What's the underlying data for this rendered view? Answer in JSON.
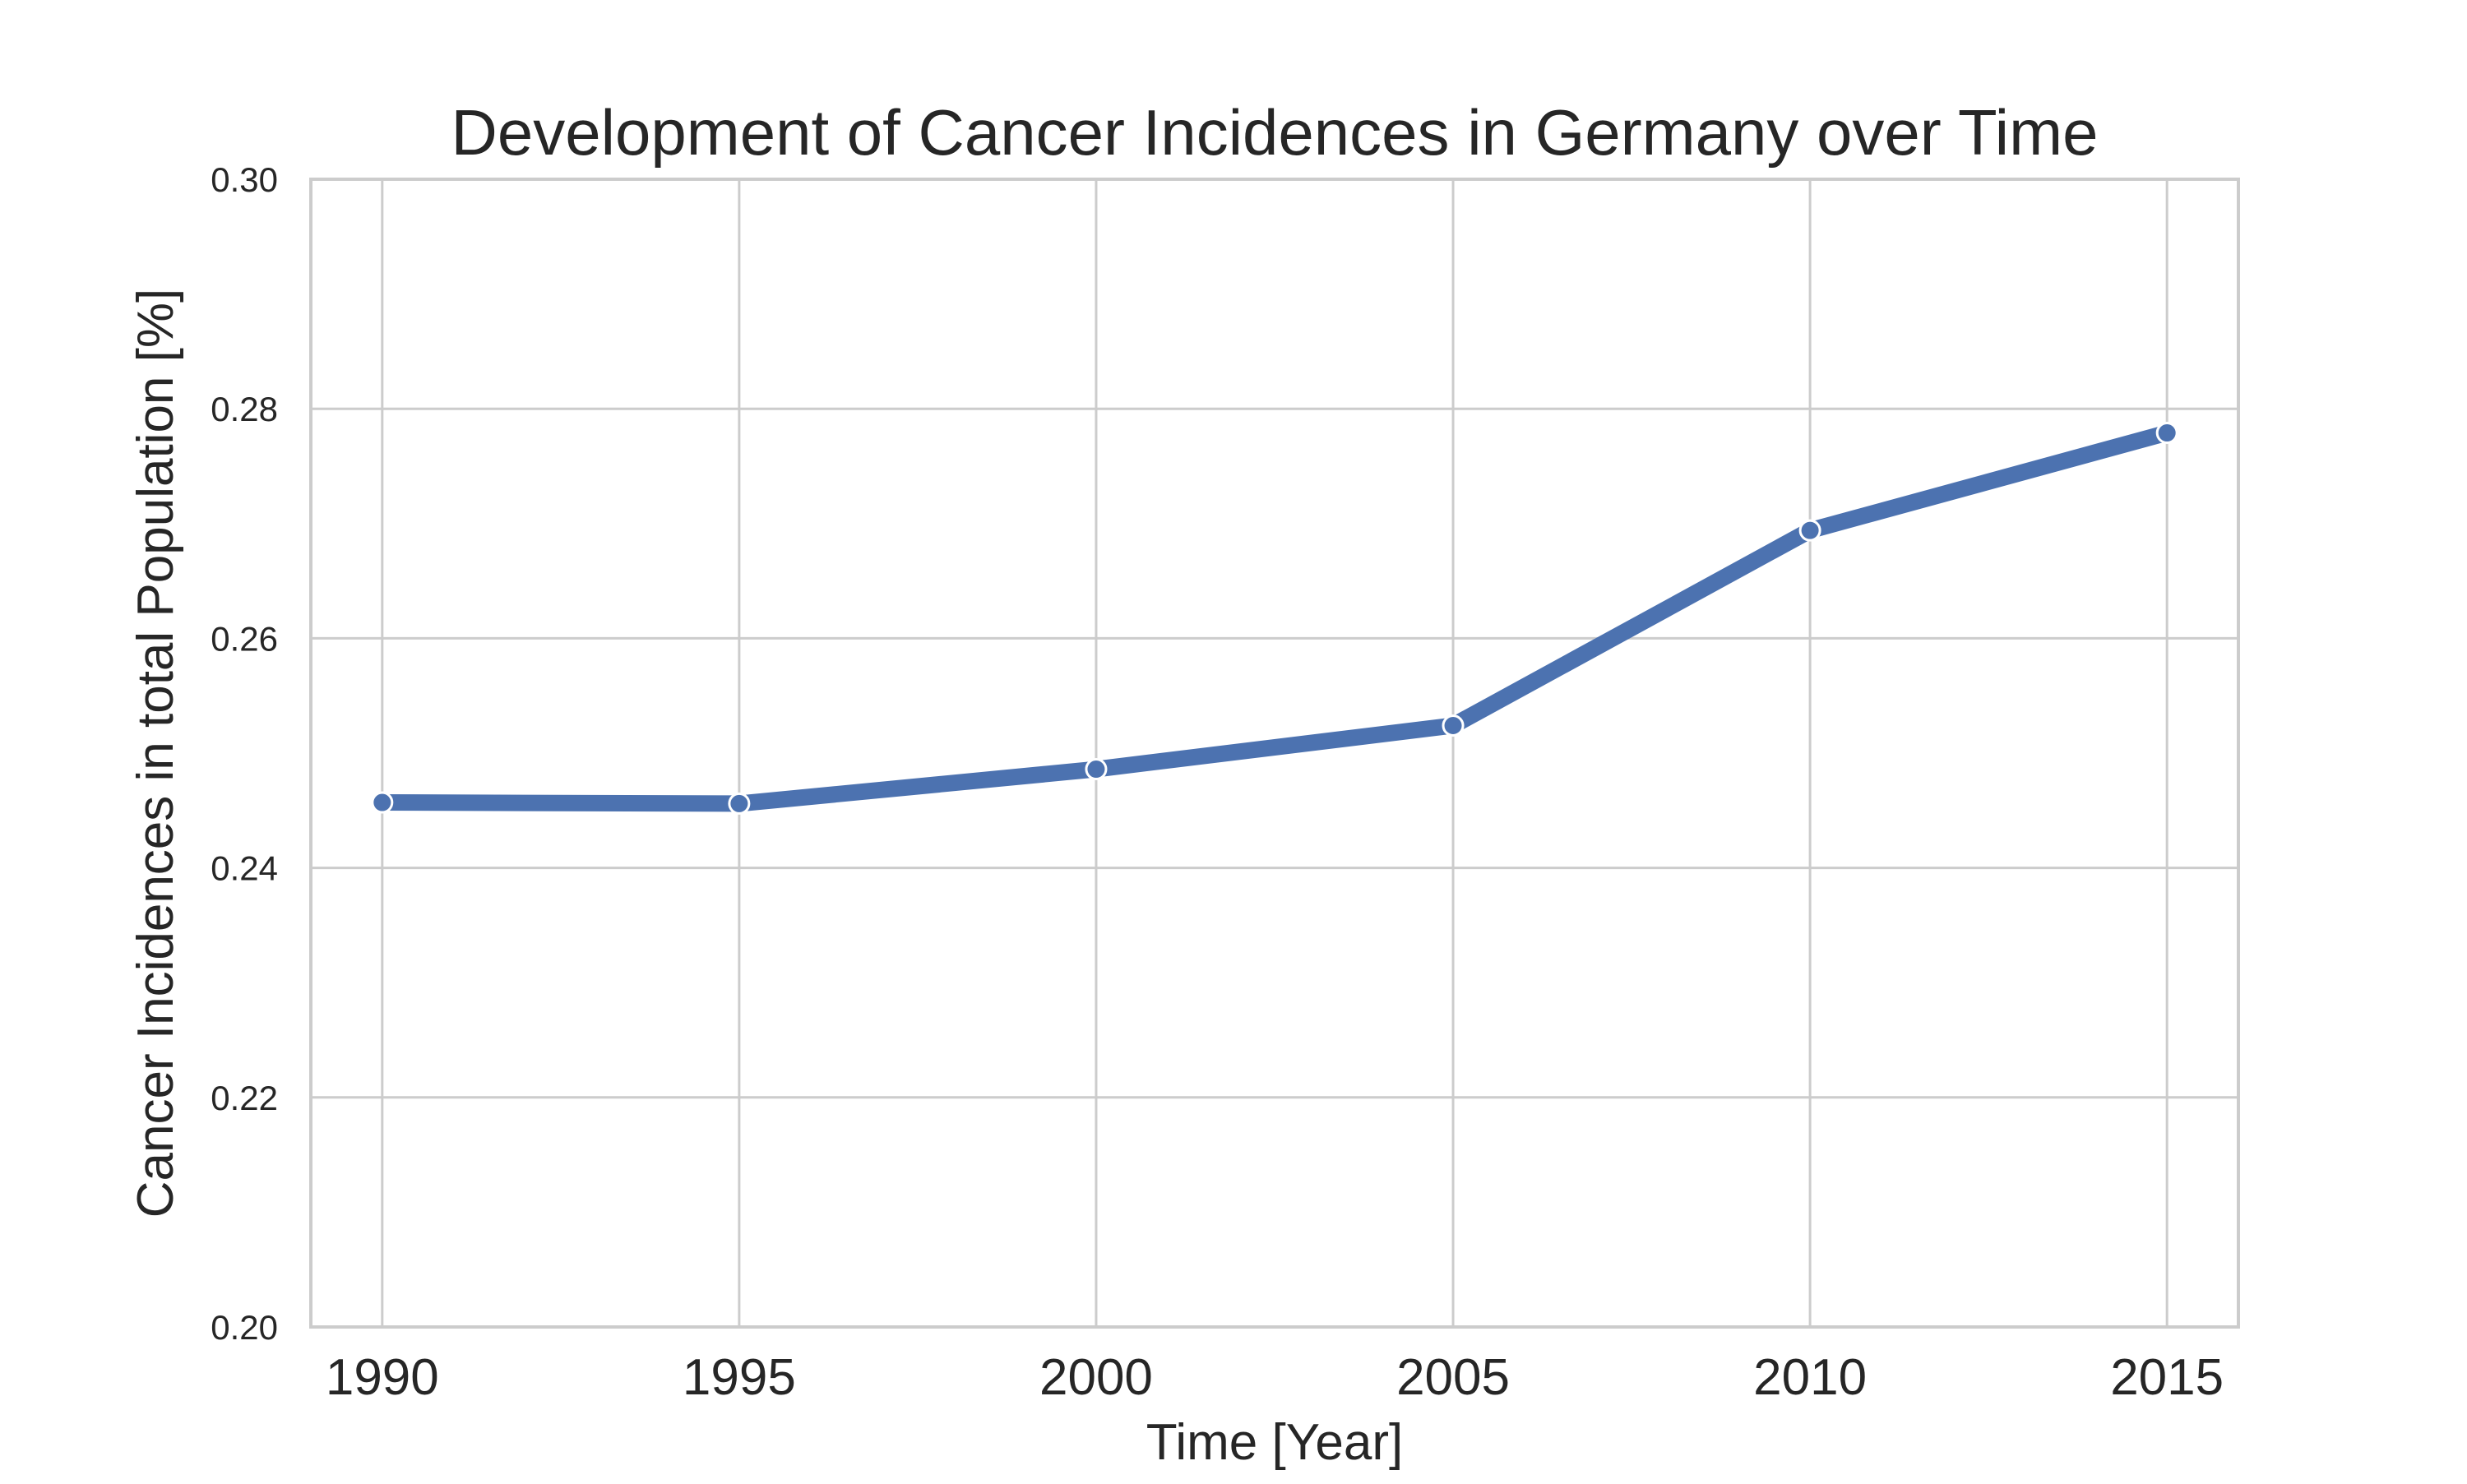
{
  "colors": {
    "background": "#ffffff",
    "grid": "#cccccc",
    "axes_frame": "#cccccc",
    "text": "#262626",
    "line": "#4c72b0",
    "marker_edge": "#ffffff"
  },
  "chart_data": {
    "type": "line",
    "title": "Development of Cancer Incidences in Germany over Time",
    "xlabel": "Time [Year]",
    "ylabel": "Cancer Incidences in total Population [%]",
    "x": [
      1990,
      1995,
      2000,
      2005,
      2010,
      2015
    ],
    "series": [
      {
        "values": [
          0.2457,
          0.2456,
          0.2486,
          0.2524,
          0.2694,
          0.2779
        ]
      }
    ],
    "xlim": [
      1989,
      2016
    ],
    "ylim": [
      0.2,
      0.3
    ],
    "xticks": [
      "1990",
      "1995",
      "2000",
      "2005",
      "2010",
      "2015"
    ],
    "yticks": [
      "0.20",
      "0.22",
      "0.24",
      "0.26",
      "0.28",
      "0.30"
    ],
    "grid": true,
    "legend": "none",
    "markers": true
  }
}
